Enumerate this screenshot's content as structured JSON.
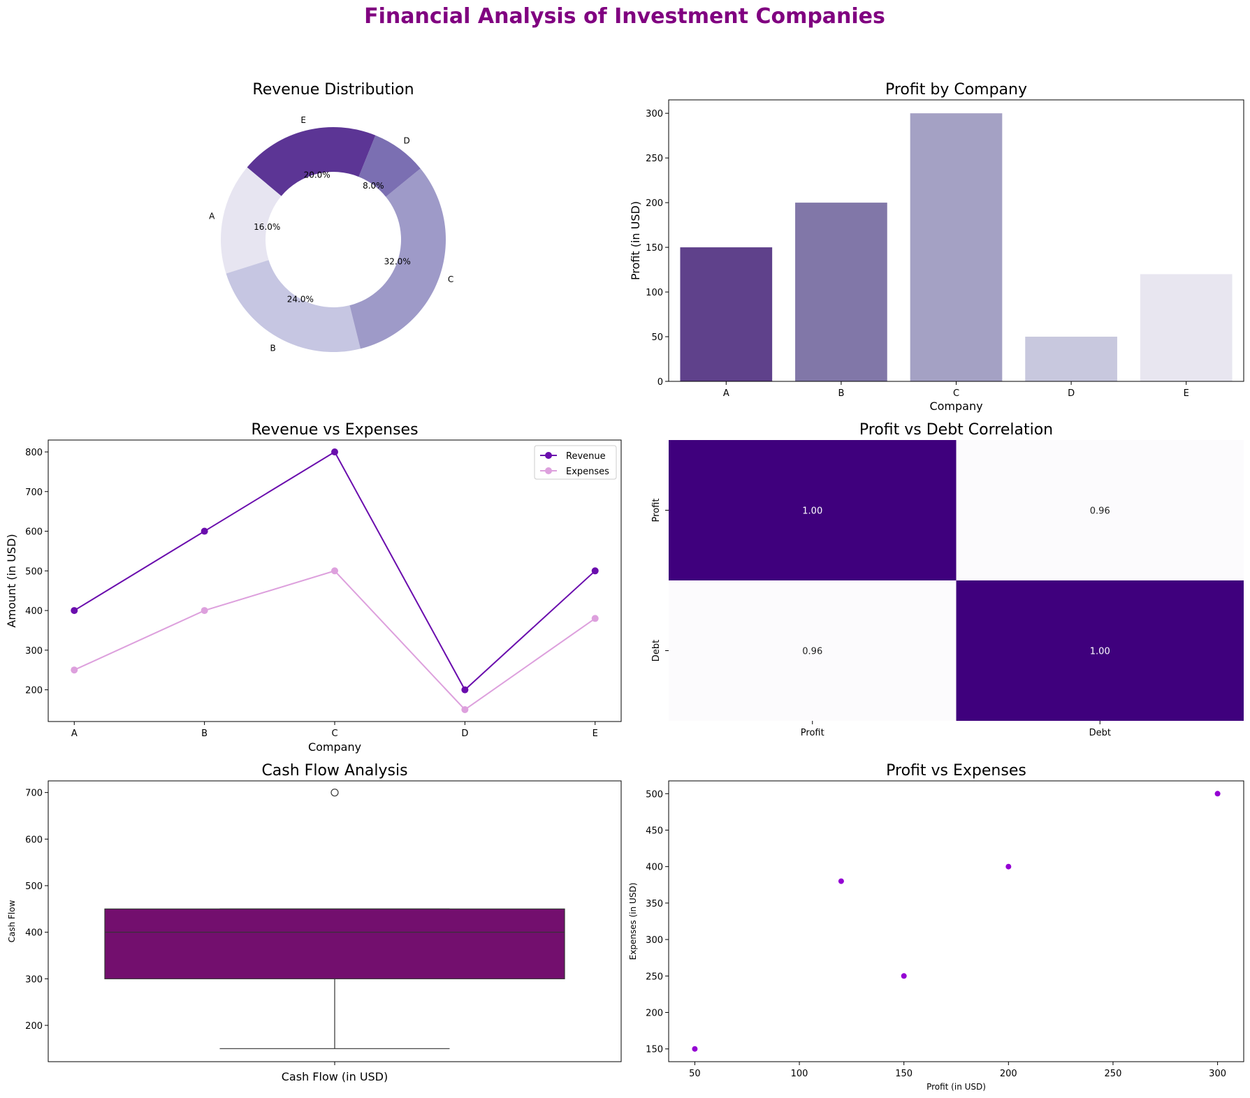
{
  "title": "Financial Analysis of Investment Companies",
  "colors": {
    "title": "#800080",
    "revenue_line": "#6a0dad",
    "expenses_line": "#dda0dd",
    "box_fill": "#730f6e",
    "scatter": "#9400d3",
    "heat_high": "#3f007d",
    "heat_low": "#fcfbfd"
  },
  "chart_data": [
    {
      "type": "pie",
      "title": "Revenue Distribution",
      "categories": [
        "A",
        "B",
        "C",
        "D",
        "E"
      ],
      "values": [
        400,
        600,
        800,
        200,
        500
      ],
      "percent_labels": [
        "16.0%",
        "24.0%",
        "32.0%",
        "8.0%",
        "20.0%"
      ],
      "colors": [
        "#e7e5f1",
        "#c6c6e2",
        "#9e9ac8",
        "#7b6fb2",
        "#5c3595"
      ],
      "donut": true,
      "start_angle": 140
    },
    {
      "type": "bar",
      "title": "Profit by Company",
      "xlabel": "Company",
      "ylabel": "Profit (in USD)",
      "categories": [
        "A",
        "B",
        "C",
        "D",
        "E"
      ],
      "values": [
        150,
        200,
        300,
        50,
        120
      ],
      "colors": [
        "#5f418b",
        "#8177a8",
        "#a4a1c4",
        "#c8c8de",
        "#e8e6f0"
      ],
      "ylim": [
        0,
        315
      ],
      "yticks": [
        0,
        50,
        100,
        150,
        200,
        250,
        300
      ]
    },
    {
      "type": "line",
      "title": "Revenue vs Expenses",
      "xlabel": "Company",
      "ylabel": "Amount (in USD)",
      "categories": [
        "A",
        "B",
        "C",
        "D",
        "E"
      ],
      "series": [
        {
          "name": "Revenue",
          "values": [
            400,
            600,
            800,
            200,
            500
          ]
        },
        {
          "name": "Expenses",
          "values": [
            250,
            400,
            500,
            150,
            380
          ]
        }
      ],
      "legend": "top-right",
      "ylim": [
        120,
        830
      ],
      "yticks": [
        200,
        300,
        400,
        500,
        600,
        700,
        800
      ]
    },
    {
      "type": "heatmap",
      "title": "Profit vs Debt Correlation",
      "rows": [
        "Profit",
        "Debt"
      ],
      "cols": [
        "Profit",
        "Debt"
      ],
      "values": [
        [
          1.0,
          0.96
        ],
        [
          0.96,
          1.0
        ]
      ],
      "labels": [
        [
          "1.00",
          "0.96"
        ],
        [
          "0.96",
          "1.00"
        ]
      ]
    },
    {
      "type": "box",
      "title": "Cash Flow Analysis",
      "xlabel": "Cash Flow (in USD)",
      "ylabel": "Cash Flow",
      "q1": 300,
      "median": 400,
      "q3": 450,
      "whisker_low": 150,
      "whisker_high": 450,
      "outliers": [
        700
      ],
      "ylim": [
        122,
        725
      ],
      "yticks": [
        200,
        300,
        400,
        500,
        600,
        700
      ]
    },
    {
      "type": "scatter",
      "title": "Profit vs Expenses",
      "xlabel": "Profit (in USD)",
      "ylabel": "Expenses (in USD)",
      "points": [
        {
          "x": 150,
          "y": 250
        },
        {
          "x": 200,
          "y": 400
        },
        {
          "x": 300,
          "y": 500
        },
        {
          "x": 50,
          "y": 150
        },
        {
          "x": 120,
          "y": 380
        }
      ],
      "xlim": [
        37.5,
        312.5
      ],
      "ylim": [
        132.5,
        517.5
      ],
      "xticks": [
        50,
        100,
        150,
        200,
        250,
        300
      ],
      "yticks": [
        150,
        200,
        250,
        300,
        350,
        400,
        450,
        500
      ]
    }
  ]
}
